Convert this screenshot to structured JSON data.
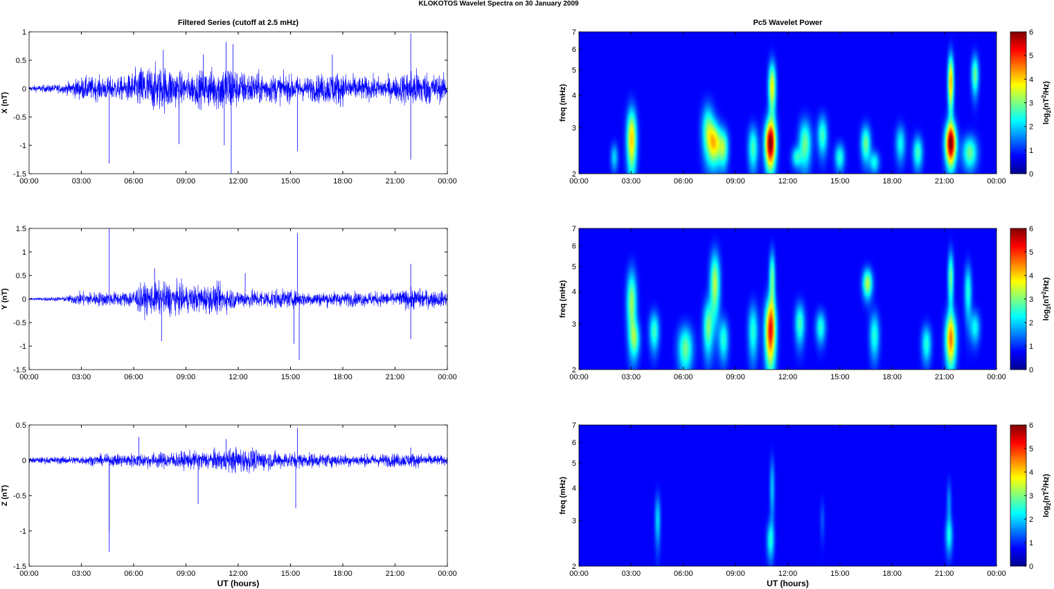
{
  "figure": {
    "title": "KLOKOTOS Wavelet Spectra on 30 January   2009"
  },
  "colors": {
    "trace": "#0000ff",
    "spectrum_background": "#00008f"
  },
  "colormap": "jet",
  "chart_data": [
    {
      "id": "x-series",
      "type": "line",
      "title": "Filtered Series (cutoff at 2.5 mHz)",
      "xlabel": "",
      "ylabel": "X (nT)",
      "xlim": [
        0,
        24
      ],
      "ylim": [
        -1.5,
        1
      ],
      "yticks": [
        "1",
        "0.5",
        "0",
        "-0.5",
        "-1",
        "-1.5"
      ],
      "xticks": [
        "00:00",
        "03:00",
        "06:00",
        "09:00",
        "12:00",
        "15:00",
        "18:00",
        "21:00",
        "00:00"
      ],
      "noise_envelope": [
        [
          0,
          0.05
        ],
        [
          2,
          0.08
        ],
        [
          3,
          0.2
        ],
        [
          5.5,
          0.2
        ],
        [
          6.5,
          0.4
        ],
        [
          8,
          0.38
        ],
        [
          9,
          0.25
        ],
        [
          10.5,
          0.35
        ],
        [
          11.5,
          0.45
        ],
        [
          12,
          0.3
        ],
        [
          14,
          0.25
        ],
        [
          16,
          0.2
        ],
        [
          17.5,
          0.3
        ],
        [
          19,
          0.2
        ],
        [
          21,
          0.2
        ],
        [
          22,
          0.35
        ],
        [
          24,
          0.2
        ]
      ],
      "spikes": [
        [
          4.6,
          -1.32
        ],
        [
          8.6,
          -0.98
        ],
        [
          11.2,
          -1.0
        ],
        [
          11.6,
          -1.5
        ],
        [
          11.3,
          0.82
        ],
        [
          11.7,
          0.78
        ],
        [
          15.4,
          -1.1
        ],
        [
          21.9,
          0.97
        ],
        [
          21.9,
          -1.25
        ],
        [
          7.7,
          0.68
        ],
        [
          10.0,
          0.6
        ],
        [
          17.4,
          0.6
        ]
      ]
    },
    {
      "id": "y-series",
      "type": "line",
      "title": "",
      "xlabel": "",
      "ylabel": "Y (nT)",
      "xlim": [
        0,
        24
      ],
      "ylim": [
        -1.5,
        1.5
      ],
      "yticks": [
        "1.5",
        "1",
        "0.5",
        "0",
        "-0.5",
        "-1",
        "-1.5"
      ],
      "xticks": [
        "00:00",
        "03:00",
        "06:00",
        "09:00",
        "12:00",
        "15:00",
        "18:00",
        "21:00",
        "00:00"
      ],
      "noise_envelope": [
        [
          0,
          0.03
        ],
        [
          2,
          0.05
        ],
        [
          3,
          0.15
        ],
        [
          5.5,
          0.15
        ],
        [
          6.5,
          0.3
        ],
        [
          8,
          0.35
        ],
        [
          9,
          0.28
        ],
        [
          11,
          0.3
        ],
        [
          12,
          0.18
        ],
        [
          14,
          0.2
        ],
        [
          16,
          0.15
        ],
        [
          18,
          0.15
        ],
        [
          21,
          0.15
        ],
        [
          22,
          0.22
        ],
        [
          24,
          0.15
        ]
      ],
      "spikes": [
        [
          4.6,
          1.5
        ],
        [
          7.6,
          -0.9
        ],
        [
          15.4,
          1.4
        ],
        [
          15.5,
          -1.3
        ],
        [
          15.2,
          -0.95
        ],
        [
          21.9,
          0.75
        ],
        [
          21.9,
          -0.85
        ],
        [
          12.4,
          0.55
        ],
        [
          7.2,
          0.65
        ]
      ]
    },
    {
      "id": "z-series",
      "type": "line",
      "title": "",
      "xlabel": "UT (hours)",
      "ylabel": "Z (nT)",
      "xlim": [
        0,
        24
      ],
      "ylim": [
        -1.5,
        0.5
      ],
      "yticks": [
        "0.5",
        "0",
        "-0.5",
        "-1",
        "-1.5"
      ],
      "xticks": [
        "00:00",
        "03:00",
        "06:00",
        "09:00",
        "12:00",
        "15:00",
        "18:00",
        "21:00",
        "00:00"
      ],
      "noise_envelope": [
        [
          0,
          0.04
        ],
        [
          3,
          0.06
        ],
        [
          6,
          0.1
        ],
        [
          9,
          0.12
        ],
        [
          11,
          0.14
        ],
        [
          12,
          0.18
        ],
        [
          14,
          0.12
        ],
        [
          16,
          0.1
        ],
        [
          19,
          0.08
        ],
        [
          22,
          0.1
        ],
        [
          24,
          0.06
        ]
      ],
      "spikes": [
        [
          4.6,
          -1.3
        ],
        [
          4.6,
          -1.02
        ],
        [
          9.7,
          -0.62
        ],
        [
          15.3,
          -0.68
        ],
        [
          15.4,
          0.46
        ],
        [
          11.3,
          0.3
        ],
        [
          6.3,
          0.33
        ],
        [
          21.9,
          0.18
        ]
      ]
    },
    {
      "id": "x-wavelet",
      "type": "heatmap",
      "title": "Pc5 Wavelet Power",
      "xlabel": "",
      "ylabel": "freq (mHz)",
      "xlim": [
        0,
        24
      ],
      "ylim": [
        2,
        7
      ],
      "yscale": "log",
      "yticks": [
        2,
        3,
        4,
        5,
        6,
        7
      ],
      "xticks": [
        "00:00",
        "03:00",
        "06:00",
        "09:00",
        "12:00",
        "15:00",
        "18:00",
        "21:00",
        "00:00"
      ],
      "colorbar": {
        "label": "log2(nT^2/Hz)",
        "range": [
          0,
          6
        ],
        "ticks": [
          "6",
          "5",
          "4",
          "3",
          "2",
          "1",
          "0"
        ]
      },
      "blobs": [
        [
          3.0,
          2.7,
          0.2,
          0.55,
          3.8
        ],
        [
          2.0,
          2.3,
          0.15,
          0.2,
          1.5
        ],
        [
          7.4,
          2.9,
          0.25,
          0.5,
          2.5
        ],
        [
          7.8,
          2.6,
          0.25,
          0.35,
          3.2
        ],
        [
          8.3,
          2.5,
          0.2,
          0.3,
          2.5
        ],
        [
          10.0,
          2.5,
          0.2,
          0.35,
          2.2
        ],
        [
          11.0,
          2.6,
          0.22,
          0.4,
          6.0
        ],
        [
          11.1,
          4.3,
          0.15,
          0.7,
          3.5
        ],
        [
          13.0,
          2.6,
          0.25,
          0.4,
          2.5
        ],
        [
          14.0,
          2.8,
          0.2,
          0.35,
          2.2
        ],
        [
          16.5,
          2.6,
          0.2,
          0.3,
          2.5
        ],
        [
          17.0,
          2.2,
          0.2,
          0.15,
          1.8
        ],
        [
          18.5,
          2.6,
          0.2,
          0.3,
          1.8
        ],
        [
          19.5,
          2.4,
          0.2,
          0.25,
          2.2
        ],
        [
          21.4,
          2.6,
          0.22,
          0.35,
          6.0
        ],
        [
          21.4,
          4.5,
          0.12,
          0.8,
          4.0
        ],
        [
          22.5,
          2.4,
          0.3,
          0.25,
          2.5
        ],
        [
          22.8,
          4.8,
          0.15,
          0.6,
          2.5
        ],
        [
          15.0,
          2.3,
          0.2,
          0.2,
          2.0
        ],
        [
          12.5,
          2.3,
          0.2,
          0.15,
          1.8
        ]
      ]
    },
    {
      "id": "y-wavelet",
      "type": "heatmap",
      "title": "",
      "xlabel": "",
      "ylabel": "freq (mHz)",
      "xlim": [
        0,
        24
      ],
      "ylim": [
        2,
        7
      ],
      "yscale": "log",
      "yticks": [
        2,
        3,
        4,
        5,
        6,
        7
      ],
      "xticks": [
        "00:00",
        "03:00",
        "06:00",
        "09:00",
        "12:00",
        "15:00",
        "18:00",
        "21:00",
        "00:00"
      ],
      "colorbar": {
        "label": "log2(nT^2/Hz)",
        "range": [
          0,
          6
        ],
        "ticks": [
          "6",
          "5",
          "4",
          "3",
          "2",
          "1",
          "0"
        ]
      },
      "blobs": [
        [
          3.0,
          3.6,
          0.2,
          0.8,
          2.8
        ],
        [
          3.2,
          2.6,
          0.2,
          0.3,
          2.0
        ],
        [
          4.3,
          2.8,
          0.2,
          0.35,
          2.2
        ],
        [
          6.1,
          2.4,
          0.3,
          0.35,
          2.5
        ],
        [
          7.4,
          2.9,
          0.2,
          0.5,
          2.5
        ],
        [
          7.8,
          4.3,
          0.2,
          0.9,
          3.0
        ],
        [
          8.3,
          2.6,
          0.2,
          0.35,
          2.0
        ],
        [
          10.0,
          2.8,
          0.2,
          0.5,
          2.0
        ],
        [
          11.0,
          2.8,
          0.22,
          0.6,
          5.0
        ],
        [
          11.1,
          4.5,
          0.12,
          0.8,
          2.5
        ],
        [
          12.7,
          3.0,
          0.2,
          0.4,
          2.2
        ],
        [
          13.9,
          2.9,
          0.2,
          0.3,
          2.0
        ],
        [
          16.6,
          4.3,
          0.2,
          0.4,
          3.0
        ],
        [
          17.0,
          2.7,
          0.2,
          0.4,
          2.0
        ],
        [
          20.0,
          2.5,
          0.2,
          0.3,
          2.0
        ],
        [
          21.4,
          2.6,
          0.22,
          0.45,
          4.2
        ],
        [
          21.4,
          4.5,
          0.12,
          0.8,
          2.5
        ],
        [
          22.4,
          4.0,
          0.15,
          0.7,
          2.0
        ],
        [
          22.8,
          2.9,
          0.2,
          0.3,
          1.8
        ]
      ]
    },
    {
      "id": "z-wavelet",
      "type": "heatmap",
      "title": "",
      "xlabel": "UT (hours)",
      "ylabel": "freq (mHz)",
      "xlim": [
        0,
        24
      ],
      "ylim": [
        2,
        7
      ],
      "yscale": "log",
      "yticks": [
        2,
        3,
        4,
        5,
        6,
        7
      ],
      "xticks": [
        "00:00",
        "03:00",
        "06:00",
        "09:00",
        "12:00",
        "15:00",
        "18:00",
        "21:00",
        "00:00"
      ],
      "colorbar": {
        "label": "log2(nT^2/Hz)",
        "range": [
          0,
          6
        ],
        "ticks": [
          "6",
          "5",
          "4",
          "3",
          "2",
          "1",
          "0"
        ]
      },
      "blobs": [
        [
          4.5,
          3.0,
          0.12,
          0.5,
          1.5
        ],
        [
          11.0,
          2.5,
          0.15,
          0.3,
          1.8
        ],
        [
          11.1,
          4.0,
          0.1,
          0.8,
          1.4
        ],
        [
          21.3,
          2.6,
          0.15,
          0.3,
          1.7
        ],
        [
          21.3,
          3.5,
          0.1,
          0.5,
          1.0
        ],
        [
          14.0,
          3.0,
          0.1,
          0.4,
          0.6
        ]
      ]
    }
  ]
}
